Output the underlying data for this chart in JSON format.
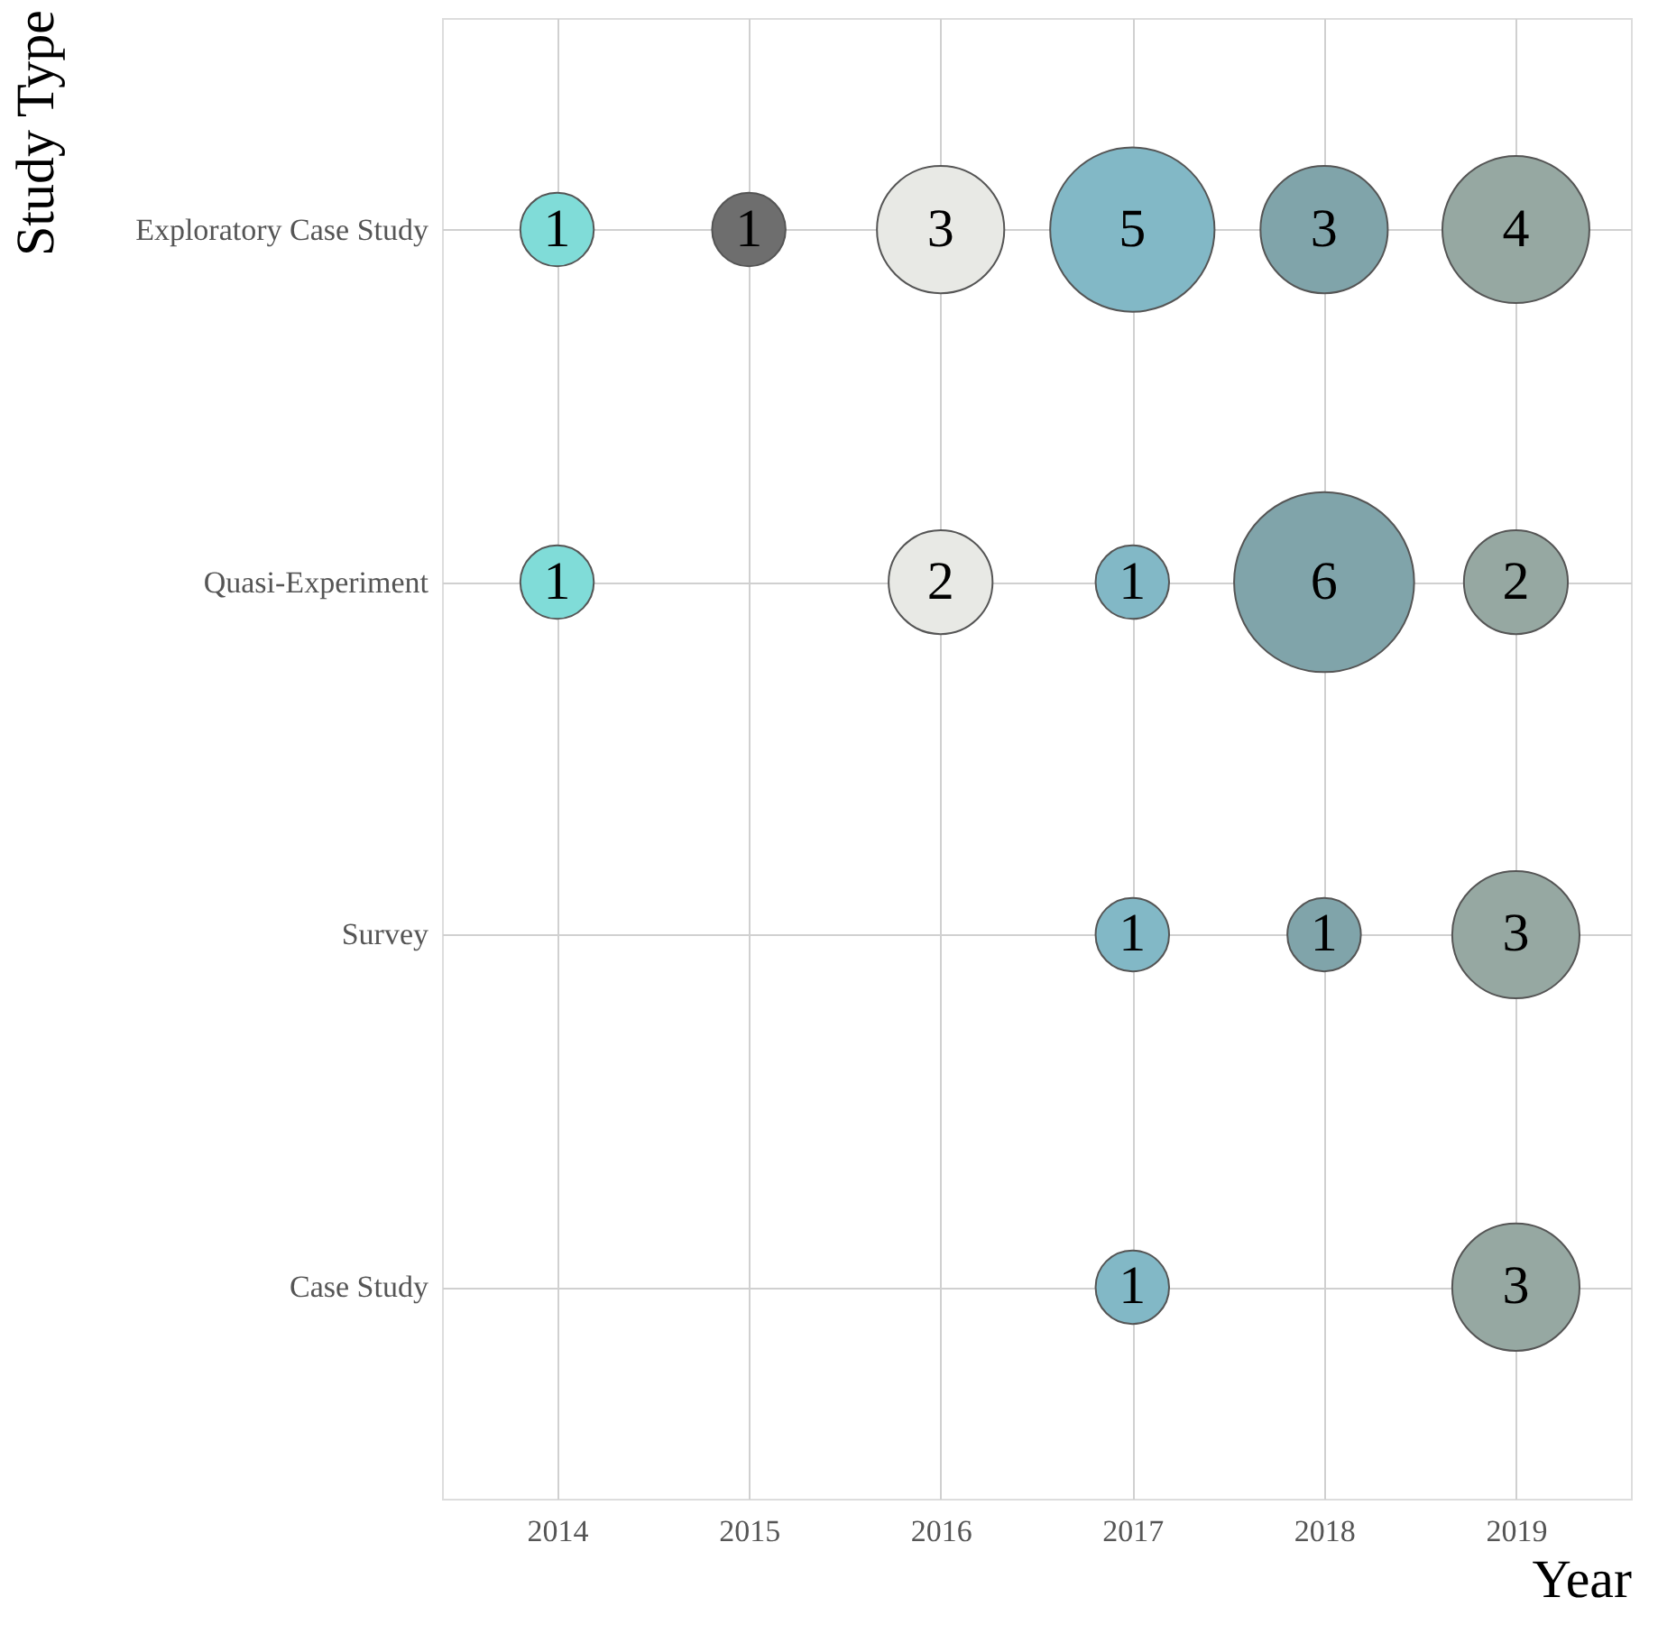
{
  "chart_data": {
    "type": "heatmap",
    "xlabel": "Year",
    "ylabel": "Study Type",
    "categories": [
      "2014",
      "2015",
      "2016",
      "2017",
      "2018",
      "2019"
    ],
    "y_categories": [
      "Exploratory Case Study",
      "Quasi-Experiment",
      "Survey",
      "Case Study"
    ],
    "cells": [
      [
        1,
        1,
        3,
        5,
        3,
        4
      ],
      [
        1,
        null,
        2,
        1,
        6,
        2
      ],
      [
        null,
        null,
        null,
        1,
        1,
        3
      ],
      [
        null,
        null,
        null,
        1,
        null,
        3
      ]
    ],
    "colors": [
      "#80dcd8",
      "#6e6e6e",
      "#e8e9e5",
      "#82b8c6",
      "#80a4aa",
      "#96a8a2"
    ],
    "data_labels": true,
    "grid": true,
    "legend": false
  }
}
